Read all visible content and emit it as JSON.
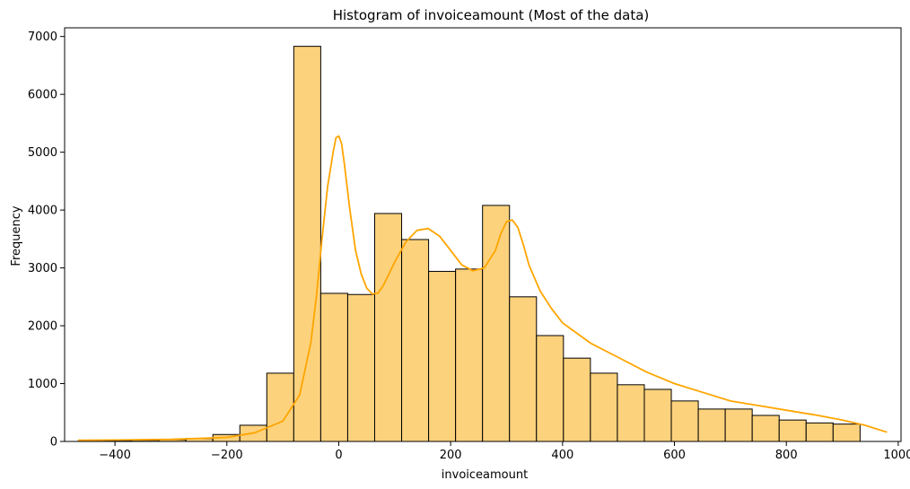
{
  "chart_data": {
    "type": "bar",
    "title": "Histogram of invoiceamount (Most of the data)",
    "xlabel": "invoiceamount",
    "ylabel": "Frequency",
    "xlim": [
      -490,
      1005
    ],
    "ylim": [
      0,
      7150
    ],
    "x_ticks": [
      -400,
      -200,
      0,
      200,
      400,
      600,
      800,
      1000
    ],
    "x_tick_labels": [
      "−400",
      "−200",
      "0",
      "200",
      "400",
      "600",
      "800",
      "1000"
    ],
    "y_ticks": [
      0,
      1000,
      2000,
      3000,
      4000,
      5000,
      6000,
      7000
    ],
    "y_tick_labels": [
      "0",
      "1000",
      "2000",
      "3000",
      "4000",
      "5000",
      "6000",
      "7000"
    ],
    "grid": false,
    "bin_start": -466,
    "bin_width": 48.2,
    "bin_counts": [
      5,
      15,
      20,
      30,
      50,
      120,
      280,
      1180,
      6830,
      2560,
      2540,
      3940,
      3490,
      2940,
      2980,
      4080,
      2500,
      1830,
      1440,
      1180,
      980,
      900,
      700,
      560,
      560,
      450,
      370,
      320,
      300
    ],
    "kde": {
      "x": [
        -466,
        -400,
        -300,
        -200,
        -150,
        -100,
        -70,
        -50,
        -40,
        -30,
        -20,
        -10,
        -5,
        0,
        5,
        10,
        20,
        30,
        40,
        50,
        60,
        70,
        80,
        100,
        120,
        140,
        160,
        180,
        200,
        220,
        240,
        260,
        280,
        290,
        300,
        310,
        320,
        330,
        340,
        360,
        380,
        400,
        450,
        500,
        550,
        600,
        650,
        700,
        750,
        800,
        850,
        900,
        940,
        980
      ],
      "y": [
        20,
        25,
        35,
        70,
        150,
        350,
        800,
        1700,
        2500,
        3500,
        4400,
        5000,
        5250,
        5280,
        5150,
        4800,
        4000,
        3300,
        2900,
        2650,
        2550,
        2560,
        2700,
        3100,
        3450,
        3650,
        3680,
        3550,
        3300,
        3050,
        2950,
        3000,
        3300,
        3600,
        3800,
        3830,
        3700,
        3400,
        3050,
        2600,
        2300,
        2050,
        1700,
        1450,
        1200,
        1000,
        850,
        700,
        620,
        540,
        460,
        370,
        280,
        160
      ]
    },
    "colors": {
      "bar_fill": "#fdd27d",
      "bar_edge": "#000000",
      "kde_line": "#ffa500"
    }
  }
}
